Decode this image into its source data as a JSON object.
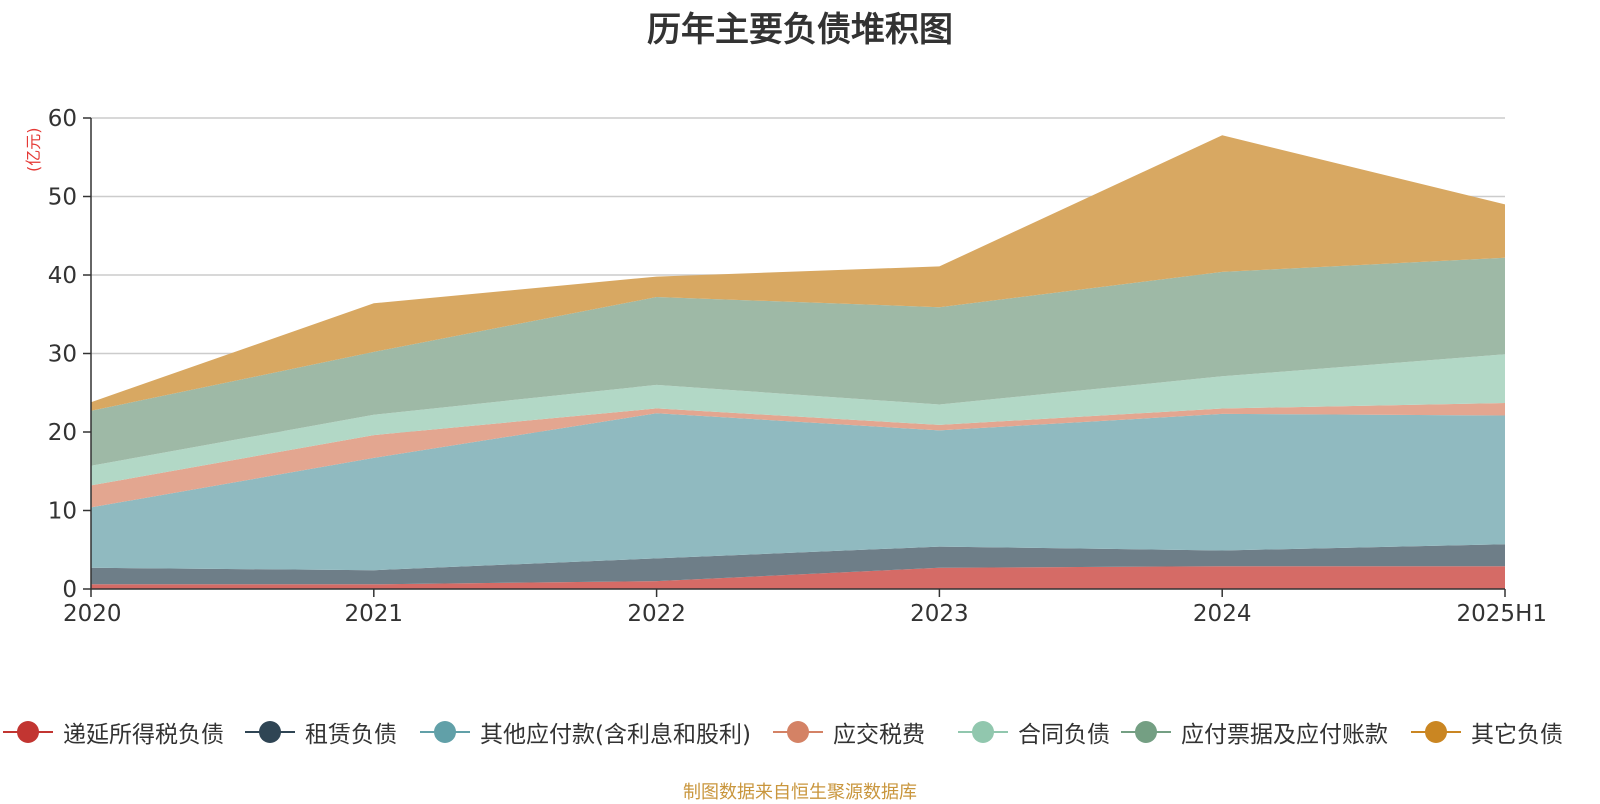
{
  "chart_data": {
    "type": "area",
    "stacked": true,
    "title": "历年主要负债堆积图",
    "unit_label": "(亿元)",
    "categories": [
      "2020",
      "2021",
      "2022",
      "2023",
      "2024",
      "2025H1"
    ],
    "ylim": [
      0,
      60
    ],
    "yticks": [
      0,
      10,
      20,
      30,
      40,
      50,
      60
    ],
    "grid": true,
    "legend_position": "bottom",
    "series": [
      {
        "name": "递延所得税负债",
        "color": "#c23531",
        "fill": "#d56b66",
        "values": [
          0.6,
          0.6,
          1.0,
          2.7,
          2.9,
          2.9
        ]
      },
      {
        "name": "租赁负债",
        "color": "#2f4554",
        "fill": "#6e7e88",
        "values": [
          2.1,
          1.8,
          2.9,
          2.7,
          2.0,
          2.8
        ]
      },
      {
        "name": "其他应付款(含利息和股利)",
        "color": "#61a0a8",
        "fill": "#90bac0",
        "values": [
          7.7,
          14.3,
          18.5,
          14.8,
          17.4,
          16.4
        ]
      },
      {
        "name": "应交税费",
        "color": "#d48265",
        "fill": "#e3a690",
        "values": [
          2.8,
          2.9,
          0.6,
          0.7,
          0.7,
          1.6
        ]
      },
      {
        "name": "合同负债",
        "color": "#91c7ae",
        "fill": "#b2d8c6",
        "values": [
          2.5,
          2.6,
          3.0,
          2.6,
          4.1,
          6.2
        ]
      },
      {
        "name": "应付票据及应付账款",
        "color": "#749f83",
        "fill": "#9eb9a6",
        "values": [
          7.0,
          8.0,
          11.2,
          12.4,
          13.3,
          12.3
        ]
      },
      {
        "name": "其它负债",
        "color": "#ca8622",
        "fill": "#d8a862",
        "values": [
          1.1,
          6.2,
          2.6,
          5.2,
          17.4,
          6.8
        ]
      }
    ],
    "source_note": "制图数据来自恒生聚源数据库"
  }
}
